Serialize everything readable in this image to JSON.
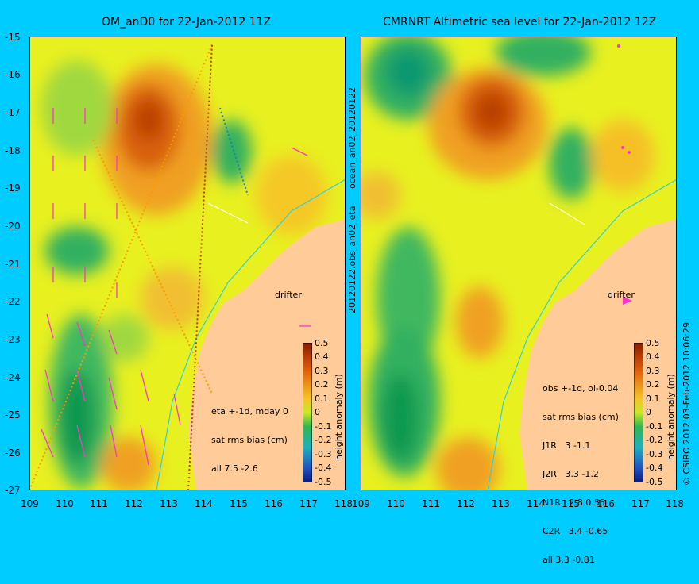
{
  "left_panel": {
    "title": "OM_anD0 for 22-Jan-2012 11Z",
    "side_label_upper": "ocean_an02_20120122",
    "side_label_lower": "20120122.obs_an02_eta",
    "drifter_label": "drifter",
    "stats_lines": [
      "eta +-1d, mday 0",
      "sat rms bias (cm)",
      "all 7.5 -2.6"
    ],
    "colorbar_label": "height anomaly (m)"
  },
  "right_panel": {
    "title": "CMRNRT Altimetric sea level  for 22-Jan-2012 12Z",
    "drifter_label": "drifter",
    "stats_lines": [
      "obs +-1d, oi-0.04",
      "sat rms bias (cm)",
      "J1R   3 -1.1",
      "J2R   3.3 -1.2",
      "N1R   2.8 0.55",
      "C2R   3.4 -0.65",
      "all 3.3 -0.81"
    ],
    "colorbar_label": "height anomaly (m)",
    "credit": "© CSIRO 2012  03-Feb-2012 10:06:29"
  },
  "axes": {
    "lat_ticks": [
      "-15",
      "-16",
      "-17",
      "-18",
      "-19",
      "-20",
      "-21",
      "-22",
      "-23",
      "-24",
      "-25",
      "-26",
      "-27"
    ],
    "lon_ticks_left": [
      "109",
      "110",
      "111",
      "112",
      "113",
      "114",
      "115",
      "116",
      "117",
      "118"
    ],
    "lon_ticks_right": [
      "109",
      "110",
      "111",
      "112",
      "113",
      "114",
      "115",
      "116",
      "117",
      "118"
    ],
    "lat_range": [
      -27,
      -15
    ],
    "lon_range": [
      109,
      118
    ]
  },
  "colorbar_ticks": [
    "0.5",
    "0.4",
    "0.3",
    "0.2",
    "0.1",
    "0",
    "-0.1",
    "-0.2",
    "-0.3",
    "-0.4",
    "-0.5"
  ],
  "colors": {
    "background": "#00ccff",
    "land": "#ffcc99",
    "field_neutral": "#e8f020",
    "high": "#c83c00",
    "low": "#20b050",
    "vector": "#ff33cc"
  }
}
